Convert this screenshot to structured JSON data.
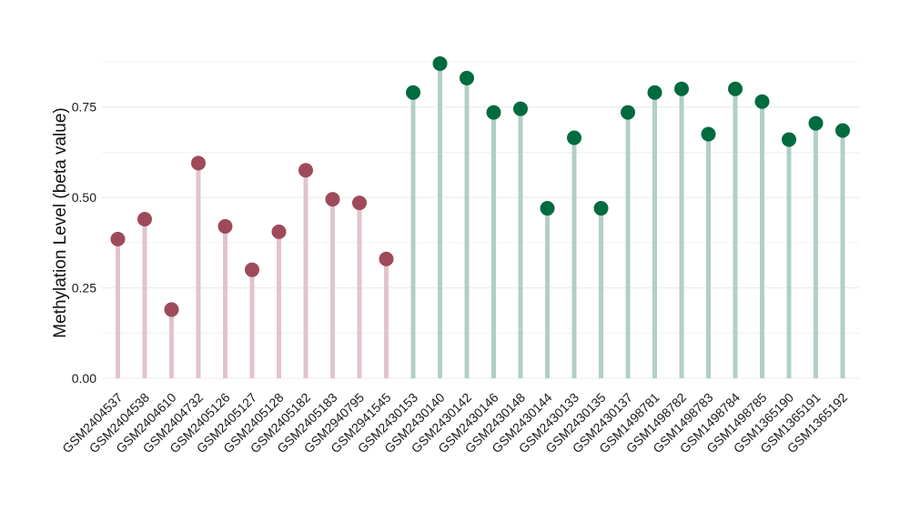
{
  "chart_data": {
    "type": "lollipop",
    "title": "",
    "xlabel": "",
    "ylabel": "Methylation Level (beta value)",
    "ylim": [
      0,
      0.9
    ],
    "yticks": [
      0.0,
      0.25,
      0.5,
      0.75
    ],
    "ytick_labels": [
      "0.00",
      "0.25",
      "0.50",
      "0.75"
    ],
    "grid": true,
    "legend": "none",
    "colors": {
      "group1_point": "#9e4a5a",
      "group1_stem": "#e1c4cb",
      "group2_point": "#006b3f",
      "group2_stem": "#b1d0c5",
      "grid": "#ececec"
    },
    "categories": [
      "GSM2404537",
      "GSM2404538",
      "GSM2404610",
      "GSM2404732",
      "GSM2405126",
      "GSM2405127",
      "GSM2405128",
      "GSM2405182",
      "GSM2405183",
      "GSM2940795",
      "GSM2941545",
      "GSM2430153",
      "GSM2430140",
      "GSM2430142",
      "GSM2430146",
      "GSM2430148",
      "GSM2430144",
      "GSM2430133",
      "GSM2430135",
      "GSM2430137",
      "GSM1498781",
      "GSM1498782",
      "GSM1498783",
      "GSM1498784",
      "GSM1498785",
      "GSM1365190",
      "GSM1365191",
      "GSM1365192"
    ],
    "values": [
      0.385,
      0.44,
      0.19,
      0.595,
      0.42,
      0.3,
      0.405,
      0.575,
      0.495,
      0.485,
      0.33,
      0.79,
      0.87,
      0.83,
      0.735,
      0.745,
      0.47,
      0.665,
      0.47,
      0.735,
      0.79,
      0.8,
      0.675,
      0.8,
      0.765,
      0.66,
      0.705,
      0.685
    ],
    "groups": [
      1,
      1,
      1,
      1,
      1,
      1,
      1,
      1,
      1,
      1,
      1,
      2,
      2,
      2,
      2,
      2,
      2,
      2,
      2,
      2,
      2,
      2,
      2,
      2,
      2,
      2,
      2,
      2
    ]
  }
}
